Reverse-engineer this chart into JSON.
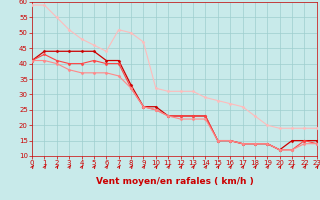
{
  "xlabel": "Vent moyen/en rafales ( km/h )",
  "xlim": [
    0,
    23
  ],
  "ylim": [
    10,
    60
  ],
  "yticks": [
    10,
    15,
    20,
    25,
    30,
    35,
    40,
    45,
    50,
    55,
    60
  ],
  "xticks": [
    0,
    1,
    2,
    3,
    4,
    5,
    6,
    7,
    8,
    9,
    10,
    11,
    12,
    13,
    14,
    15,
    16,
    17,
    18,
    19,
    20,
    21,
    22,
    23
  ],
  "background_color": "#c8eaea",
  "grid_color": "#9ecece",
  "series": [
    {
      "x": [
        0,
        1,
        2,
        3,
        4,
        5,
        6,
        7,
        8,
        9,
        10,
        11,
        12,
        13,
        14,
        15,
        16,
        17,
        18,
        19,
        20,
        21,
        22,
        23
      ],
      "y": [
        59,
        59,
        55,
        51,
        48,
        46,
        44,
        51,
        50,
        47,
        32,
        31,
        31,
        31,
        29,
        28,
        27,
        26,
        23,
        20,
        19,
        19,
        19,
        19
      ],
      "color": "#ffbbbb",
      "marker": "D",
      "markersize": 1.5,
      "linewidth": 0.8
    },
    {
      "x": [
        0,
        1,
        2,
        3,
        4,
        5,
        6,
        7,
        8,
        9,
        10,
        11,
        12,
        13,
        14,
        15,
        16,
        17,
        18,
        19,
        20,
        21,
        22,
        23
      ],
      "y": [
        41,
        44,
        44,
        44,
        44,
        44,
        41,
        41,
        33,
        26,
        26,
        23,
        23,
        23,
        23,
        15,
        15,
        14,
        14,
        14,
        12,
        15,
        15,
        15
      ],
      "color": "#cc0000",
      "marker": "D",
      "markersize": 1.5,
      "linewidth": 0.9
    },
    {
      "x": [
        0,
        1,
        2,
        3,
        4,
        5,
        6,
        7,
        8,
        9,
        10,
        11,
        12,
        13,
        14,
        15,
        16,
        17,
        18,
        19,
        20,
        21,
        22,
        23
      ],
      "y": [
        41,
        43,
        41,
        40,
        40,
        41,
        40,
        40,
        32,
        26,
        25,
        23,
        23,
        23,
        23,
        15,
        15,
        14,
        14,
        14,
        12,
        12,
        15,
        14
      ],
      "color": "#ff4444",
      "marker": "D",
      "markersize": 1.5,
      "linewidth": 0.8
    },
    {
      "x": [
        0,
        1,
        2,
        3,
        4,
        5,
        6,
        7,
        8,
        9,
        10,
        11,
        12,
        13,
        14,
        15,
        16,
        17,
        18,
        19,
        20,
        21,
        22,
        23
      ],
      "y": [
        41,
        41,
        40,
        38,
        37,
        37,
        37,
        36,
        32,
        26,
        25,
        23,
        22,
        22,
        22,
        15,
        15,
        14,
        14,
        14,
        12,
        12,
        14,
        14
      ],
      "color": "#ff8888",
      "marker": "D",
      "markersize": 1.5,
      "linewidth": 0.8
    }
  ],
  "arrow_color": "#cc0000",
  "xlabel_color": "#cc0000",
  "xlabel_fontsize": 6.5,
  "tick_fontsize": 5,
  "tick_color": "#cc0000"
}
